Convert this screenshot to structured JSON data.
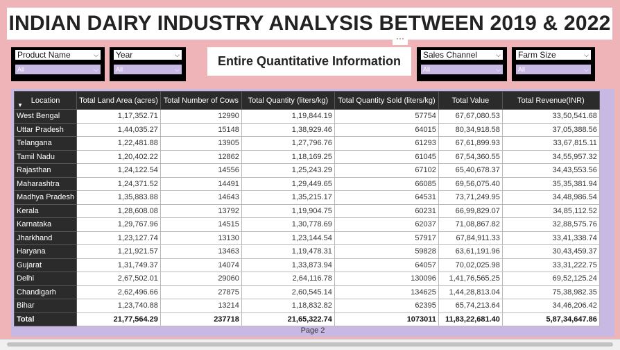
{
  "title": "INDIAN DAIRY INDUSTRY ANALYSIS BETWEEN 2019 & 2022",
  "more_options": "···",
  "slicers": [
    {
      "label": "Product Name",
      "value": "All"
    },
    {
      "label": "Year",
      "value": "All"
    },
    {
      "label": "Sales Channel",
      "value": "All"
    },
    {
      "label": "Farm Size",
      "value": "All"
    }
  ],
  "card_text": "Entire Quantitative Information",
  "table": {
    "columns": [
      "Location",
      "Total Land Area (acres)",
      "Total Number of Cows",
      "Total Quantity (liters/kg)",
      "Total Quantity Sold (liters/kg)",
      "Total Value",
      "Total Revenue(INR)"
    ],
    "sort_indicator": "▼",
    "rows": [
      [
        "West Bengal",
        "1,17,352.71",
        "12990",
        "1,19,844.19",
        "57754",
        "67,67,080.53",
        "33,50,541.68"
      ],
      [
        "Uttar Pradesh",
        "1,44,035.27",
        "15148",
        "1,38,929.46",
        "64015",
        "80,34,918.58",
        "37,05,388.56"
      ],
      [
        "Telangana",
        "1,22,481.88",
        "13905",
        "1,27,796.76",
        "61293",
        "67,61,899.93",
        "33,67,815.11"
      ],
      [
        "Tamil Nadu",
        "1,20,402.22",
        "12862",
        "1,18,169.25",
        "61045",
        "67,54,360.55",
        "34,55,957.32"
      ],
      [
        "Rajasthan",
        "1,24,122.54",
        "14556",
        "1,25,243.29",
        "67102",
        "65,40,678.37",
        "34,43,553.56"
      ],
      [
        "Maharashtra",
        "1,24,371.52",
        "14491",
        "1,29,449.65",
        "66085",
        "69,56,075.40",
        "35,35,381.94"
      ],
      [
        "Madhya Pradesh",
        "1,35,883.88",
        "14643",
        "1,35,215.17",
        "64531",
        "73,71,249.95",
        "34,48,986.54"
      ],
      [
        "Kerala",
        "1,28,608.08",
        "13792",
        "1,19,904.75",
        "60231",
        "66,99,829.07",
        "34,85,112.52"
      ],
      [
        "Karnataka",
        "1,29,767.96",
        "14515",
        "1,30,778.69",
        "62037",
        "71,08,867.82",
        "32,88,575.76"
      ],
      [
        "Jharkhand",
        "1,23,127.74",
        "13130",
        "1,23,144.54",
        "57917",
        "67,84,911.33",
        "33,41,338.74"
      ],
      [
        "Haryana",
        "1,21,921.57",
        "13463",
        "1,19,478.31",
        "59828",
        "63,61,191.96",
        "30,43,459.37"
      ],
      [
        "Gujarat",
        "1,31,749.37",
        "14074",
        "1,33,873.94",
        "64057",
        "70,02,025.98",
        "33,31,222.75"
      ],
      [
        "Delhi",
        "2,67,502.01",
        "29060",
        "2,64,116.78",
        "130096",
        "1,41,76,565.25",
        "69,52,125.24"
      ],
      [
        "Chandigarh",
        "2,62,496.66",
        "27875",
        "2,60,545.14",
        "134625",
        "1,44,28,813.04",
        "75,38,982.35"
      ],
      [
        "Bihar",
        "1,23,740.88",
        "13214",
        "1,18,832.82",
        "62395",
        "65,74,213.64",
        "34,46,206.42"
      ]
    ],
    "total": [
      "Total",
      "21,77,564.29",
      "237718",
      "21,65,322.74",
      "1073011",
      "11,83,22,681.40",
      "5,87,34,647.86"
    ]
  },
  "page_label": "Page 2"
}
